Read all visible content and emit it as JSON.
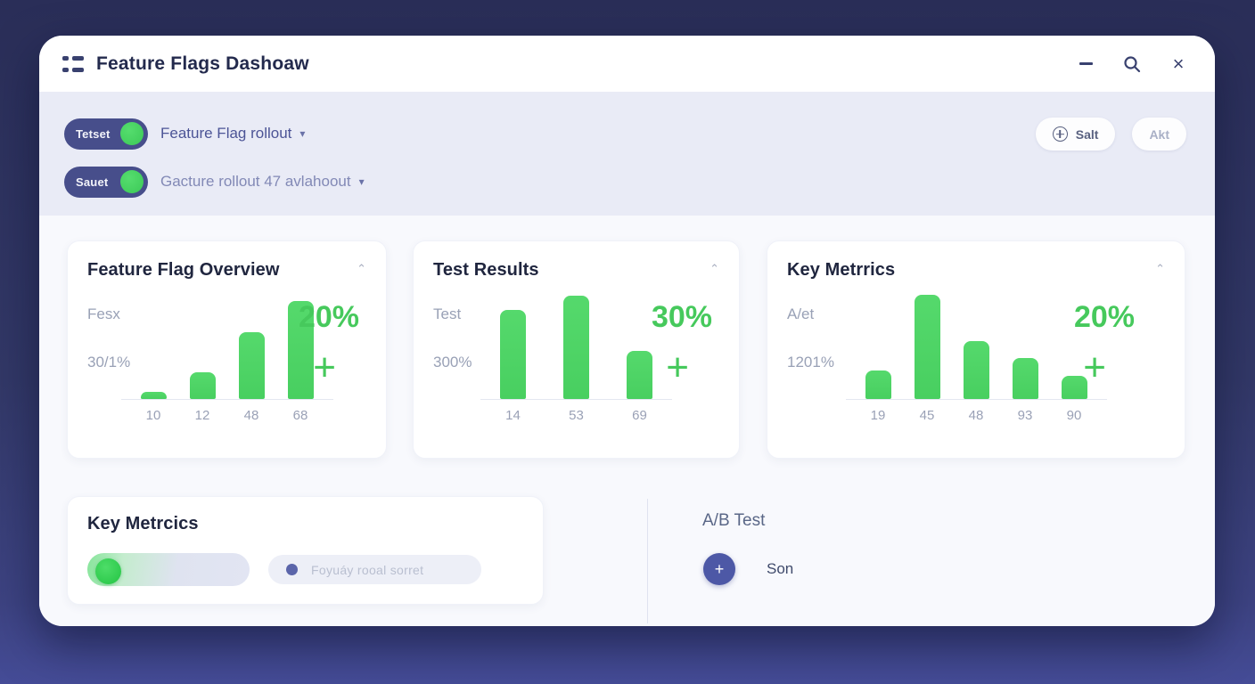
{
  "window": {
    "title": "Feature Flags Dashoaw",
    "controls": {
      "minimize": "minimize",
      "search": "search",
      "close": "×"
    }
  },
  "toolbar": {
    "toggles": [
      {
        "label": "Tetset",
        "state": "on",
        "dropdown": "Feature Flag rollout",
        "caret": "▾"
      },
      {
        "label": "Sauet",
        "state": "on",
        "dropdown": "Gacture rollout 47 avlahoout",
        "caret": "▾"
      }
    ],
    "actions": [
      {
        "label": "Salt",
        "icon": "plus-circle-icon"
      },
      {
        "label": "Akt"
      }
    ]
  },
  "cards": [
    {
      "title": "Feature Flag Overview",
      "label_top": "Fesx",
      "label_mid": "30/1%",
      "percent": "20%",
      "plus": "+",
      "collapse_caret": "⌃",
      "chart_data": {
        "type": "bar",
        "categories": [
          "10",
          "12",
          "48",
          "68"
        ],
        "values": [
          8,
          30,
          75,
          110
        ],
        "title": "Feature Flag Overview",
        "xlabel": "",
        "ylabel": "",
        "bar_color": "#4dd364",
        "unit": "px-height",
        "grid": false,
        "legend": false
      }
    },
    {
      "title": "Test Results",
      "label_top": "Test",
      "label_mid": "300%",
      "percent": "30%",
      "plus": "+",
      "collapse_caret": "⌃",
      "chart_data": {
        "type": "bar",
        "categories": [
          "14",
          "53",
          "69"
        ],
        "values": [
          100,
          116,
          54
        ],
        "title": "Test Results",
        "xlabel": "",
        "ylabel": "",
        "bar_color": "#4dd364",
        "unit": "px-height",
        "grid": false,
        "legend": false
      }
    },
    {
      "title": "Key Metrrics",
      "label_top": "A/et",
      "label_mid": "1201%",
      "percent": "20%",
      "plus": "+",
      "collapse_caret": "⌃",
      "chart_data": {
        "type": "bar",
        "categories": [
          "19",
          "45",
          "48",
          "93",
          "90"
        ],
        "values": [
          32,
          117,
          65,
          46,
          26
        ],
        "title": "Key Metrics",
        "xlabel": "",
        "ylabel": "",
        "bar_color": "#4dd364",
        "unit": "px-height",
        "grid": false,
        "legend": false
      }
    }
  ],
  "bottom": {
    "metrics_card": {
      "title": "Key Metrcics",
      "status_pill_text": "Foyuáy rooal sorret"
    },
    "ab_test": {
      "title": "A/B Test",
      "plus": "+",
      "action_label": "Son"
    }
  },
  "colors": {
    "background_top": "#2a2e58",
    "background_bottom": "#454c97",
    "accent_green": "#46c95c",
    "bar_green": "#4dd364",
    "toggle_pill": "#474e8b",
    "indigo_button": "#4d58a6",
    "toolbar_band": "#e9ebf6",
    "card_title": "#20263f"
  }
}
